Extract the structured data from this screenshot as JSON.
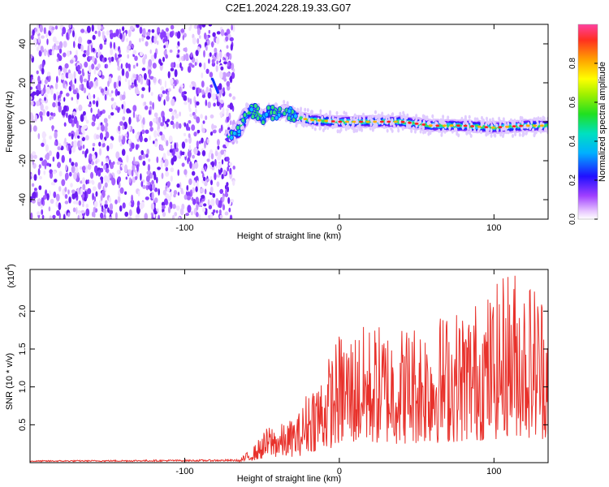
{
  "title": "C2E1.2024.228.19.33.G07",
  "chart_data": [
    {
      "type": "heatmap",
      "xlabel": "Height of straight line (km)",
      "ylabel": "Frequency (Hz)",
      "xlim": [
        -200,
        135
      ],
      "ylim": [
        -50,
        50
      ],
      "x_ticks": [
        -100,
        0,
        100
      ],
      "y_ticks": [
        -40,
        -20,
        0,
        20,
        40
      ],
      "colorbar": {
        "label": "Normalized spectral amplitude",
        "range": [
          0,
          1
        ],
        "ticks": [
          0.0,
          0.2,
          0.4,
          0.6,
          0.8
        ]
      },
      "noise_region_x": [
        -200,
        -72
      ],
      "ridge": [
        {
          "x": -82,
          "y": 22
        },
        {
          "x": -78,
          "y": 14
        },
        {
          "x": -72,
          "y": -8
        },
        {
          "x": -66,
          "y": -6
        },
        {
          "x": -60,
          "y": 4
        },
        {
          "x": -55,
          "y": 6
        },
        {
          "x": -50,
          "y": 2
        },
        {
          "x": -45,
          "y": 5
        },
        {
          "x": -40,
          "y": 4
        },
        {
          "x": -35,
          "y": 6
        },
        {
          "x": -30,
          "y": 3
        },
        {
          "x": -20,
          "y": 1
        },
        {
          "x": 0,
          "y": 0
        },
        {
          "x": 20,
          "y": 0
        },
        {
          "x": 40,
          "y": 0
        },
        {
          "x": 60,
          "y": -2
        },
        {
          "x": 80,
          "y": -2
        },
        {
          "x": 100,
          "y": -3
        },
        {
          "x": 120,
          "y": -2
        },
        {
          "x": 135,
          "y": -2
        }
      ],
      "colors": {
        "noise": "#7b2ff7",
        "ridge_core": "#ff2020",
        "ridge_edge": "#1020ff"
      }
    },
    {
      "type": "line",
      "xlabel": "Height of straight line (km)",
      "ylabel": "SNR (10 * v/v)",
      "multiplier_label": "(x10",
      "multiplier_exp": "4",
      "multiplier_close": ")",
      "xlim": [
        -200,
        135
      ],
      "ylim": [
        0,
        2.55
      ],
      "x_ticks": [
        -100,
        0,
        100
      ],
      "y_ticks": [
        0.5,
        1.0,
        1.5,
        2.0
      ],
      "line_color": "#e8312b",
      "envelope": [
        {
          "x": -200,
          "y": 0.02
        },
        {
          "x": -65,
          "y": 0.03
        },
        {
          "x": -55,
          "y": 0.2
        },
        {
          "x": -45,
          "y": 0.45
        },
        {
          "x": -35,
          "y": 0.45
        },
        {
          "x": -25,
          "y": 0.6
        },
        {
          "x": -20,
          "y": 0.9
        },
        {
          "x": -10,
          "y": 1.1
        },
        {
          "x": 0,
          "y": 1.5
        },
        {
          "x": 20,
          "y": 1.6
        },
        {
          "x": 40,
          "y": 1.6
        },
        {
          "x": 60,
          "y": 1.7
        },
        {
          "x": 80,
          "y": 1.8
        },
        {
          "x": 100,
          "y": 2.0
        },
        {
          "x": 110,
          "y": 2.3
        },
        {
          "x": 135,
          "y": 2.0
        }
      ]
    }
  ]
}
